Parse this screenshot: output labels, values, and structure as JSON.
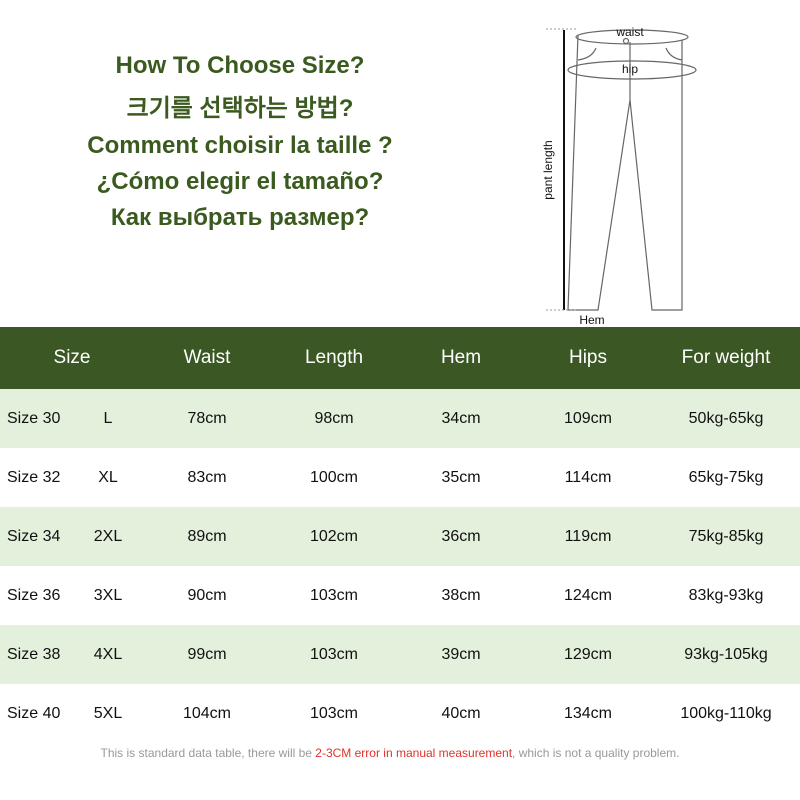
{
  "titles": [
    "How To Choose Size?",
    "크기를 선택하는 방법?",
    "Comment choisir la taille ?",
    "¿Cómo elegir el tamaño?",
    "Как выбрать размер?"
  ],
  "diagram": {
    "waist": "waist",
    "hip": "hip",
    "length": "pant length",
    "hem": "Hem"
  },
  "table": {
    "headers": [
      "Size",
      "Waist",
      "Length",
      "Hem",
      "Hips",
      "For weight"
    ],
    "rows": [
      [
        "Size 30",
        "L",
        "78cm",
        "98cm",
        "34cm",
        "109cm",
        "50kg-65kg"
      ],
      [
        "Size 32",
        "XL",
        "83cm",
        "100cm",
        "35cm",
        "114cm",
        "65kg-75kg"
      ],
      [
        "Size 34",
        "2XL",
        "89cm",
        "102cm",
        "36cm",
        "119cm",
        "75kg-85kg"
      ],
      [
        "Size 36",
        "3XL",
        "90cm",
        "103cm",
        "38cm",
        "124cm",
        "83kg-93kg"
      ],
      [
        "Size 38",
        "4XL",
        "99cm",
        "103cm",
        "39cm",
        "129cm",
        "93kg-105kg"
      ],
      [
        "Size 40",
        "5XL",
        "104cm",
        "103cm",
        "40cm",
        "134cm",
        "100kg-110kg"
      ]
    ]
  },
  "footer": {
    "pre": "This is standard data table, there will be ",
    "highlight": "2-3CM error in manual measurement",
    "post": ", which is not a quality problem."
  },
  "colors": {
    "header": "#3a5724",
    "row_alt": "#e3f0dc",
    "title": "#3b5a1f",
    "highlight": "#e0312a"
  }
}
